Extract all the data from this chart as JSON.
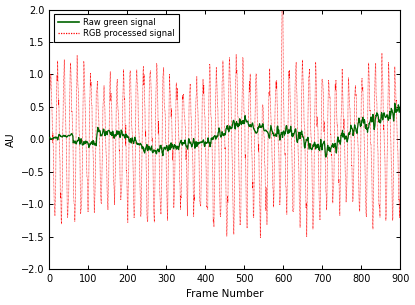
{
  "n": 900,
  "ylim": [
    -2,
    2
  ],
  "xlim": [
    0,
    900
  ],
  "yticks": [
    -2,
    -1.5,
    -1,
    -0.5,
    0,
    0.5,
    1,
    1.5,
    2
  ],
  "xticks": [
    0,
    100,
    200,
    300,
    400,
    500,
    600,
    700,
    800,
    900
  ],
  "xlabel": "Frame Number",
  "ylabel": "AU",
  "green_color": "#006400",
  "red_color": "#FF0000",
  "background_color": "#ffffff",
  "legend_green": "Raw green signal",
  "legend_red": "RGB processed signal",
  "fig_width": 4.15,
  "fig_height": 3.05,
  "dpi": 100,
  "green_seed": 10,
  "red_seed": 7
}
